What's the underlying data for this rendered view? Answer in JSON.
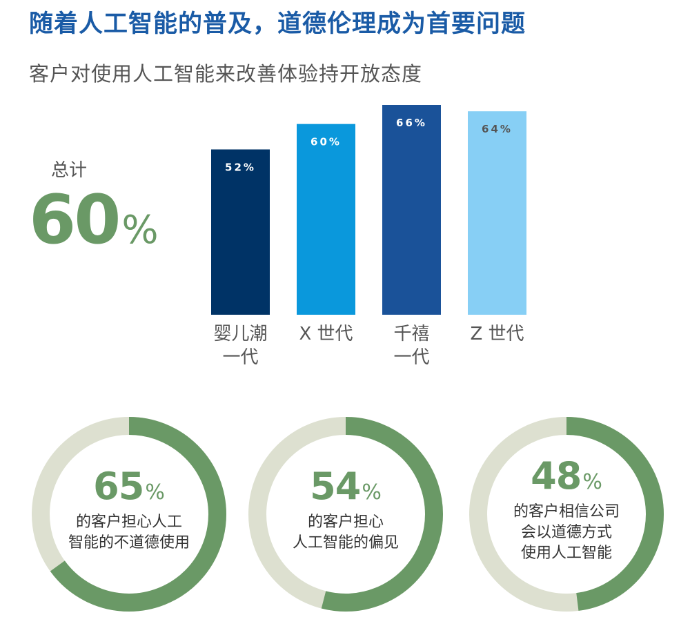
{
  "header": {
    "title": "随着人工智能的普及，道德伦理成为首要问题",
    "subtitle": "客户对使用人工智能来改善体验持开放态度"
  },
  "total": {
    "label": "总计",
    "value": "60",
    "unit": "%"
  },
  "chart_data": {
    "type": "bar",
    "categories": [
      [
        "婴儿潮",
        "一代"
      ],
      [
        "X 世代"
      ],
      [
        "千禧",
        "一代"
      ],
      [
        "Z 世代"
      ]
    ],
    "values": [
      52,
      60,
      66,
      64
    ],
    "value_labels": [
      "52%",
      "60%",
      "66%",
      "64%"
    ],
    "colors": [
      "#003366",
      "#0a98dc",
      "#1a5299",
      "#87cff5"
    ],
    "label_colors": [
      "#ffffff",
      "#ffffff",
      "#ffffff",
      "#555555"
    ],
    "ylim": [
      0,
      66
    ],
    "grid": false,
    "title": "",
    "xlabel": "",
    "ylabel": ""
  },
  "donuts": [
    {
      "value": "65",
      "fraction": 0.65,
      "unit": "%",
      "caption": [
        "的客户担心人工",
        "智能的不道德使用"
      ]
    },
    {
      "value": "54",
      "fraction": 0.54,
      "unit": "%",
      "caption": [
        "的客户担心",
        "人工智能的偏见"
      ]
    },
    {
      "value": "48",
      "fraction": 0.48,
      "unit": "%",
      "caption": [
        "的客户相信公司",
        "会以道德方式",
        "使用人工智能"
      ]
    }
  ],
  "colors": {
    "title": "#1a5ba6",
    "accent_green": "#6a9966",
    "donut_track": "#dde0d0"
  }
}
